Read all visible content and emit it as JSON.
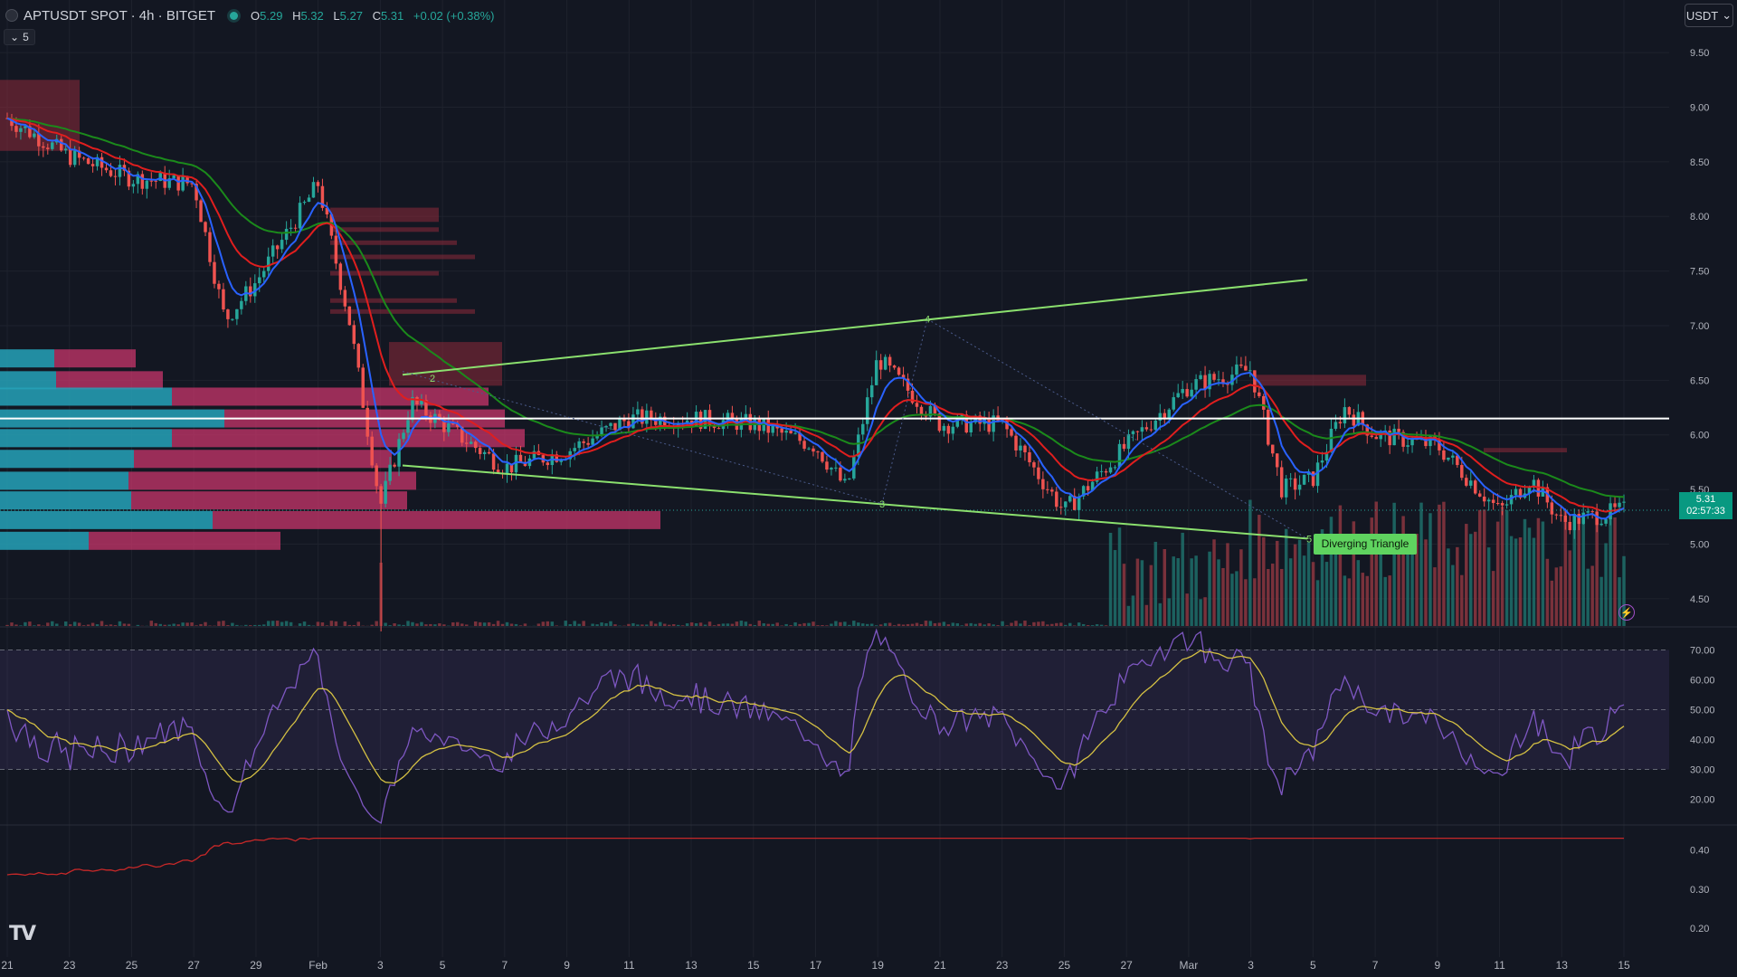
{
  "header": {
    "symbol": "APTUSDT SPOT · 4h · BITGET",
    "open_label": "O",
    "open": "5.29",
    "high_label": "H",
    "high": "5.32",
    "low_label": "L",
    "low": "5.27",
    "close_label": "C",
    "close": "5.31",
    "change": "+0.02 (+0.38%)",
    "indicator_toggle": "5"
  },
  "currency_button": "USDT",
  "last_price": {
    "price": "5.31",
    "countdown": "02:57:33"
  },
  "pattern_label": "Diverging Triangle",
  "pattern_points": [
    "2",
    "4",
    "3",
    "5"
  ],
  "colors": {
    "background": "#131722",
    "up": "#26a69a",
    "down": "#ef5350",
    "ema_fast": "#2962ff",
    "ema_mid": "#e01e1e",
    "ema_slow": "#1b8a1b",
    "rsi": "#7e57c2",
    "rsi_ma": "#d4c043",
    "pattern": "#8be06e",
    "vp_up": "#26a2b8",
    "vp_down": "#c8356b",
    "lower_line": "#c62828"
  },
  "price_axis": [
    "9.50",
    "9.00",
    "8.50",
    "8.00",
    "7.50",
    "7.00",
    "6.50",
    "6.00",
    "5.50",
    "5.00",
    "4.50"
  ],
  "rsi_axis": [
    "70.00",
    "60.00",
    "50.00",
    "40.00",
    "30.00",
    "20.00"
  ],
  "lower_axis": [
    "0.40",
    "0.30",
    "0.20"
  ],
  "time_axis": [
    "21",
    "23",
    "25",
    "27",
    "29",
    "Feb",
    "3",
    "5",
    "7",
    "9",
    "11",
    "13",
    "15",
    "17",
    "19",
    "21",
    "23",
    "25",
    "27",
    "Mar",
    "3",
    "5",
    "7",
    "9",
    "11",
    "13",
    "15"
  ],
  "chart_data": {
    "type": "candlestick",
    "symbol": "APTUSDT",
    "ylim": [
      4.25,
      9.65
    ],
    "key_close_prices": [
      {
        "x": "21",
        "y": 8.9
      },
      {
        "x": "23",
        "y": 8.55
      },
      {
        "x": "25",
        "y": 8.35
      },
      {
        "x": "27",
        "y": 8.3
      },
      {
        "x": "28",
        "y": 7.05
      },
      {
        "x": "29",
        "y": 7.4
      },
      {
        "x": "Feb",
        "y": 8.3
      },
      {
        "x": "2",
        "y": 7.05
      },
      {
        "x": "3",
        "y": 5.35
      },
      {
        "x": "4",
        "y": 6.3
      },
      {
        "x": "5",
        "y": 6.1
      },
      {
        "x": "7",
        "y": 5.7
      },
      {
        "x": "9",
        "y": 5.85
      },
      {
        "x": "11",
        "y": 6.15
      },
      {
        "x": "13",
        "y": 6.15
      },
      {
        "x": "15",
        "y": 6.1
      },
      {
        "x": "17",
        "y": 5.9
      },
      {
        "x": "18",
        "y": 5.5
      },
      {
        "x": "19",
        "y": 6.7
      },
      {
        "x": "21",
        "y": 6.1
      },
      {
        "x": "23",
        "y": 6.1
      },
      {
        "x": "25",
        "y": 5.3
      },
      {
        "x": "27",
        "y": 5.9
      },
      {
        "x": "Mar",
        "y": 6.45
      },
      {
        "x": "3",
        "y": 6.6
      },
      {
        "x": "4",
        "y": 5.5
      },
      {
        "x": "5",
        "y": 5.6
      },
      {
        "x": "6",
        "y": 6.25
      },
      {
        "x": "7",
        "y": 6.0
      },
      {
        "x": "9",
        "y": 5.9
      },
      {
        "x": "11",
        "y": 5.3
      },
      {
        "x": "12",
        "y": 5.6
      },
      {
        "x": "13",
        "y": 5.2
      },
      {
        "x": "15",
        "y": 5.31
      }
    ],
    "horizontal_line": 6.15,
    "rsi": {
      "ylim": [
        15,
        75
      ],
      "band": [
        30,
        70
      ],
      "mid": 50
    },
    "lower_indicator": {
      "ylim": [
        0.14,
        0.45
      ]
    }
  }
}
